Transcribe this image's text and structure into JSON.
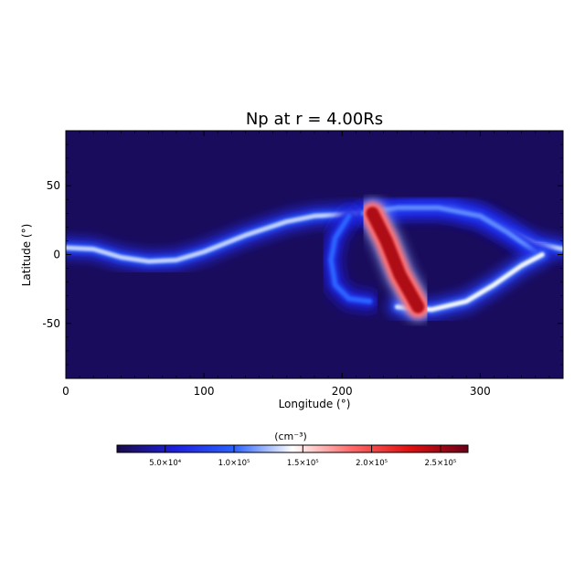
{
  "chart_data": {
    "type": "heatmap",
    "title": "Np at r = 4.00Rs",
    "xlabel": "Longitude (°)",
    "ylabel": "Latitude (°)",
    "xlim": [
      0,
      360
    ],
    "ylim": [
      -90,
      90
    ],
    "xticks": [
      0,
      100,
      200,
      300
    ],
    "yticks": [
      -50,
      0,
      50
    ],
    "colorbar": {
      "label": "(cm⁻³)",
      "range": [
        15000,
        270000
      ],
      "ticks": [
        {
          "value": 50000,
          "label": "5.0×10⁴"
        },
        {
          "value": 100000,
          "label": "1.0×10⁵"
        },
        {
          "value": 150000,
          "label": "1.5×10⁵"
        },
        {
          "value": 200000,
          "label": "2.0×10⁵"
        },
        {
          "value": 250000,
          "label": "2.5×10⁵"
        }
      ],
      "colormap": [
        "#1a0a4a",
        "#1d1fe0",
        "#2b62ff",
        "#ffffff",
        "#ff6a6a",
        "#e01010",
        "#6a0018"
      ]
    },
    "background_value": 20000,
    "features": [
      {
        "name": "streamer-belt",
        "value": 130000,
        "path": [
          [
            0,
            5
          ],
          [
            20,
            4
          ],
          [
            40,
            -2
          ],
          [
            60,
            -5
          ],
          [
            80,
            -4
          ],
          [
            100,
            2
          ],
          [
            130,
            14
          ],
          [
            160,
            24
          ],
          [
            180,
            28
          ],
          [
            200,
            29
          ],
          [
            220,
            31
          ],
          [
            250,
            34
          ],
          [
            280,
            34
          ],
          [
            300,
            28
          ],
          [
            320,
            18
          ],
          [
            340,
            8
          ],
          [
            360,
            4
          ]
        ]
      },
      {
        "name": "loop-upper-edge",
        "value": 110000,
        "path": [
          [
            215,
            30
          ],
          [
            240,
            34
          ],
          [
            270,
            34
          ],
          [
            300,
            28
          ],
          [
            320,
            16
          ],
          [
            340,
            2
          ]
        ]
      },
      {
        "name": "loop-lower-edge",
        "value": 140000,
        "path": [
          [
            240,
            -38
          ],
          [
            265,
            -40
          ],
          [
            290,
            -34
          ],
          [
            310,
            -22
          ],
          [
            330,
            -8
          ],
          [
            345,
            0
          ]
        ]
      },
      {
        "name": "western-arc",
        "value": 100000,
        "path": [
          [
            205,
            28
          ],
          [
            195,
            12
          ],
          [
            192,
            -4
          ],
          [
            195,
            -22
          ],
          [
            205,
            -32
          ],
          [
            220,
            -34
          ]
        ]
      },
      {
        "name": "dense-diagonal-sheet",
        "value": 245000,
        "path": [
          [
            222,
            30
          ],
          [
            232,
            10
          ],
          [
            242,
            -15
          ],
          [
            255,
            -38
          ]
        ]
      }
    ]
  }
}
